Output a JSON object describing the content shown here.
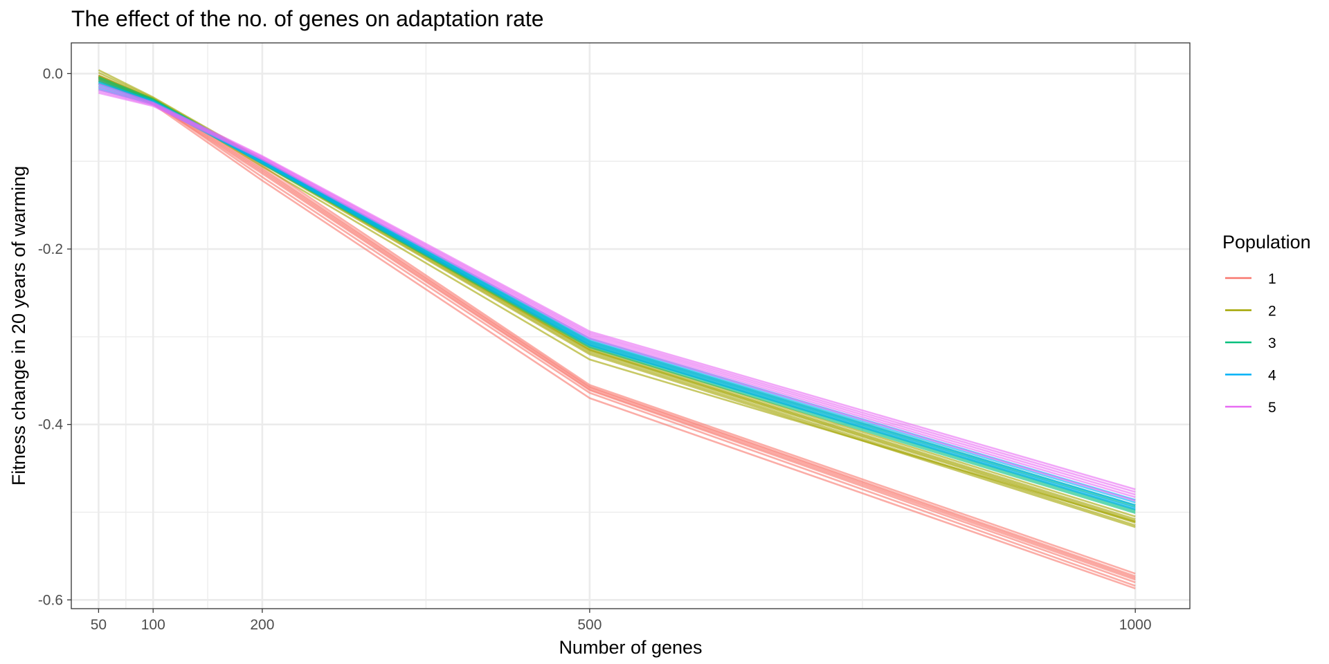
{
  "chart_data": {
    "type": "line",
    "title": "The effect of the no. of genes on adaptation rate",
    "xlabel": "Number of genes",
    "ylabel": "Fitness change in 20 years of warming",
    "x": [
      50,
      100,
      200,
      500,
      1000
    ],
    "xticks": [
      50,
      100,
      200,
      500,
      1000
    ],
    "xlim": [
      25,
      1050
    ],
    "yticks": [
      0.0,
      -0.2,
      -0.4,
      -0.6
    ],
    "ytick_labels": [
      "0.0",
      "-0.2",
      "-0.4",
      "-0.6"
    ],
    "ylim": [
      -0.61,
      0.035
    ],
    "grid": true,
    "legend": {
      "title": "Population",
      "position": "right"
    },
    "series": [
      {
        "name": "1",
        "color": "#F8766D",
        "runs": [
          [
            -0.002,
            -0.03,
            -0.105,
            -0.355,
            -0.57
          ],
          [
            -0.004,
            -0.031,
            -0.108,
            -0.357,
            -0.573
          ],
          [
            -0.005,
            -0.032,
            -0.11,
            -0.358,
            -0.575
          ],
          [
            -0.006,
            -0.033,
            -0.112,
            -0.36,
            -0.577
          ],
          [
            -0.008,
            -0.034,
            -0.114,
            -0.361,
            -0.58
          ],
          [
            -0.003,
            -0.033,
            -0.118,
            -0.364,
            -0.584
          ],
          [
            -0.007,
            -0.035,
            -0.122,
            -0.37,
            -0.587
          ]
        ]
      },
      {
        "name": "2",
        "color": "#A3A500",
        "runs": [
          [
            0.004,
            -0.027,
            -0.098,
            -0.312,
            -0.505
          ],
          [
            0.001,
            -0.028,
            -0.099,
            -0.314,
            -0.508
          ],
          [
            -0.002,
            -0.029,
            -0.1,
            -0.315,
            -0.51
          ],
          [
            -0.003,
            -0.029,
            -0.101,
            -0.316,
            -0.512
          ],
          [
            -0.005,
            -0.03,
            -0.102,
            -0.318,
            -0.515
          ],
          [
            -0.006,
            -0.031,
            -0.103,
            -0.32,
            -0.517
          ],
          [
            -0.004,
            -0.03,
            -0.106,
            -0.326,
            -0.511
          ]
        ]
      },
      {
        "name": "3",
        "color": "#00BF7D",
        "runs": [
          [
            -0.004,
            -0.029,
            -0.099,
            -0.305,
            -0.492
          ],
          [
            -0.006,
            -0.03,
            -0.1,
            -0.307,
            -0.494
          ],
          [
            -0.008,
            -0.031,
            -0.101,
            -0.309,
            -0.497
          ],
          [
            -0.009,
            -0.031,
            -0.102,
            -0.31,
            -0.499
          ],
          [
            -0.011,
            -0.032,
            -0.103,
            -0.312,
            -0.501
          ]
        ]
      },
      {
        "name": "4",
        "color": "#00B0F6",
        "runs": [
          [
            -0.01,
            -0.031,
            -0.098,
            -0.302,
            -0.486
          ],
          [
            -0.012,
            -0.032,
            -0.099,
            -0.304,
            -0.489
          ],
          [
            -0.014,
            -0.033,
            -0.1,
            -0.306,
            -0.492
          ],
          [
            -0.016,
            -0.034,
            -0.101,
            -0.308,
            -0.495
          ],
          [
            -0.018,
            -0.035,
            -0.102,
            -0.31,
            -0.497
          ]
        ]
      },
      {
        "name": "5",
        "color": "#E76BF3",
        "runs": [
          [
            -0.012,
            -0.033,
            -0.094,
            -0.294,
            -0.474
          ],
          [
            -0.015,
            -0.034,
            -0.095,
            -0.296,
            -0.477
          ],
          [
            -0.018,
            -0.035,
            -0.096,
            -0.298,
            -0.48
          ],
          [
            -0.02,
            -0.036,
            -0.097,
            -0.3,
            -0.483
          ],
          [
            -0.022,
            -0.037,
            -0.098,
            -0.302,
            -0.487
          ]
        ]
      }
    ]
  }
}
